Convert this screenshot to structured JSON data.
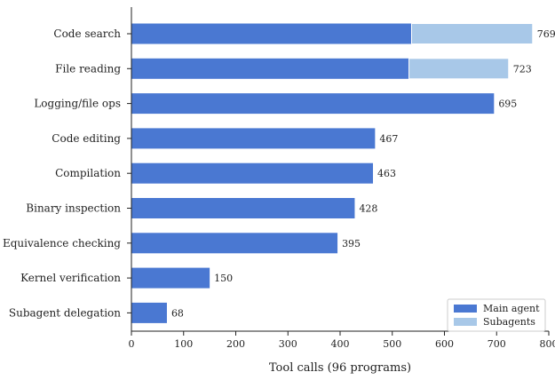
{
  "chart_data": {
    "type": "bar",
    "orientation": "horizontal",
    "stacked": true,
    "categories": [
      "Code search",
      "File reading",
      "Logging/file ops",
      "Code editing",
      "Compilation",
      "Binary inspection",
      "Equivalence checking",
      "Kernel verification",
      "Subagent delegation"
    ],
    "series": [
      {
        "name": "Main agent",
        "color": "#4a78d2",
        "values": [
          537,
          532,
          695,
          467,
          463,
          428,
          395,
          150,
          68
        ]
      },
      {
        "name": "Subagents",
        "color": "#a8c8e8",
        "values": [
          232,
          191,
          0,
          0,
          0,
          0,
          0,
          0,
          0
        ]
      }
    ],
    "totals": [
      "769",
      "723",
      "695",
      "467",
      "463",
      "428",
      "395",
      "150",
      "68"
    ],
    "xlabel": "Tool calls (96 programs)",
    "xlim": [
      0,
      800
    ],
    "xticks": [
      "0",
      "100",
      "200",
      "300",
      "400",
      "500",
      "600",
      "700",
      "800"
    ],
    "grid": false,
    "legend_position": "bottom-right"
  }
}
